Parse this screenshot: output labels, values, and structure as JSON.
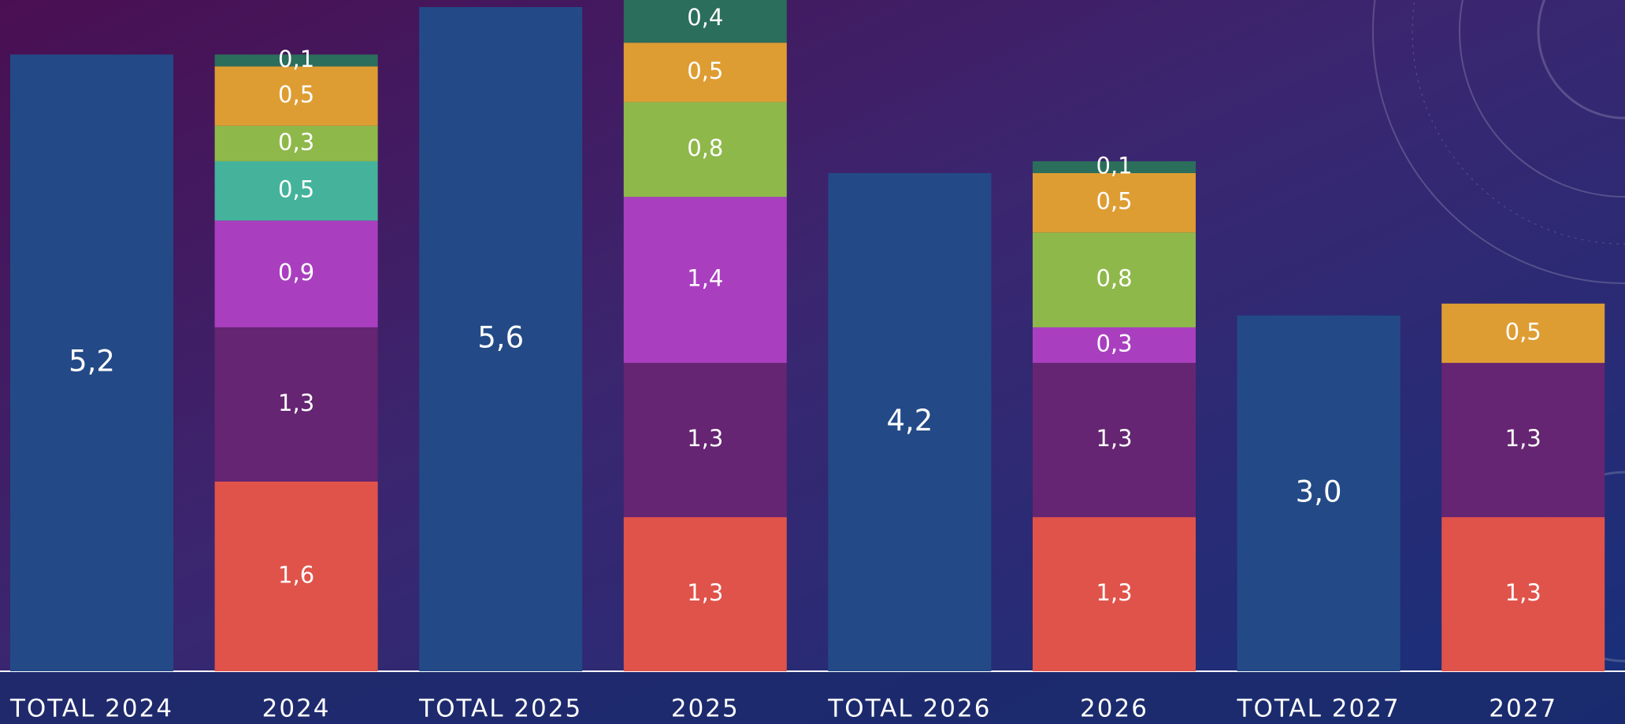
{
  "chart_data": {
    "type": "stacked_bar",
    "categories": [
      "TOTAL 2024",
      "2024",
      "TOTAL 2025",
      "2025",
      "TOTAL 2026",
      "2026",
      "TOTAL 2027",
      "2027"
    ],
    "ylim": [
      0,
      5.6
    ],
    "series": [
      {
        "color": "#234a87",
        "values": [
          5.2,
          null,
          5.6,
          null,
          4.2,
          null,
          3.0,
          null
        ],
        "value_labels": [
          "5,2",
          null,
          "5,6",
          null,
          "4,2",
          null,
          "3,0",
          null
        ]
      },
      {
        "color": "#e0534a",
        "values": [
          null,
          1.6,
          null,
          1.3,
          null,
          1.3,
          null,
          1.3
        ],
        "value_labels": [
          null,
          "1,6",
          null,
          "1,3",
          null,
          "1,3",
          null,
          "1,3"
        ]
      },
      {
        "color": "#652572",
        "values": [
          null,
          1.3,
          null,
          1.3,
          null,
          1.3,
          null,
          1.3
        ],
        "value_labels": [
          null,
          "1,3",
          null,
          "1,3",
          null,
          "1,3",
          null,
          "1,3"
        ]
      },
      {
        "color": "#a93fbf",
        "values": [
          null,
          0.9,
          null,
          1.4,
          null,
          0.3,
          null,
          null
        ],
        "value_labels": [
          null,
          "0,9",
          null,
          "1,4",
          null,
          "0,3",
          null,
          null
        ]
      },
      {
        "color": "#45b39b",
        "values": [
          null,
          0.5,
          null,
          null,
          null,
          null,
          null,
          null
        ],
        "value_labels": [
          null,
          "0,5",
          null,
          null,
          null,
          null,
          null,
          null
        ]
      },
      {
        "color": "#8fb84b",
        "values": [
          null,
          0.3,
          null,
          0.8,
          null,
          0.8,
          null,
          null
        ],
        "value_labels": [
          null,
          "0,3",
          null,
          "0,8",
          null,
          "0,8",
          null,
          null
        ]
      },
      {
        "color": "#de9d33",
        "values": [
          null,
          0.5,
          null,
          0.5,
          null,
          0.5,
          null,
          0.5
        ],
        "value_labels": [
          null,
          "0,5",
          null,
          "0,5",
          null,
          "0,5",
          null,
          "0,5"
        ]
      },
      {
        "color": "#2b6e5b",
        "values": [
          null,
          0.1,
          null,
          0.4,
          null,
          0.1,
          null,
          null
        ],
        "value_labels": [
          null,
          "0,1",
          null,
          "0,4",
          null,
          "0,1",
          null,
          null
        ]
      }
    ]
  }
}
